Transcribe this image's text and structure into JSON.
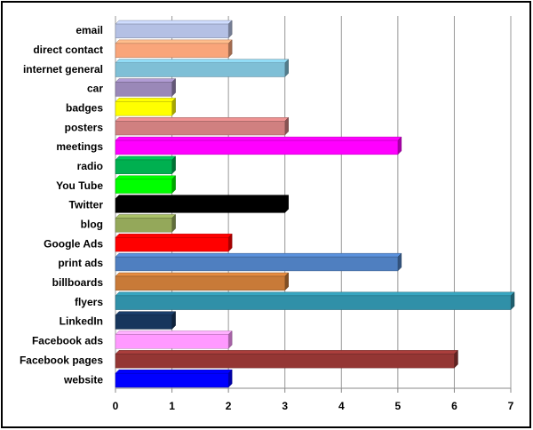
{
  "chart_data": {
    "type": "bar",
    "orientation": "horizontal",
    "categories": [
      "email",
      "direct contact",
      "internet general",
      "car",
      "badges",
      "posters",
      "meetings",
      "radio",
      "You Tube",
      "Twitter",
      "blog",
      "Google Ads",
      "print ads",
      "billboards",
      "flyers",
      "LinkedIn",
      "Facebook ads",
      "Facebook pages",
      "website"
    ],
    "values": [
      2,
      2,
      3,
      1,
      1,
      3,
      5,
      1,
      1,
      3,
      1,
      2,
      5,
      3,
      7,
      1,
      2,
      6,
      2
    ],
    "colors": [
      "#b4c0e4",
      "#f9a57a",
      "#7fbfd6",
      "#9a88b8",
      "#ffff00",
      "#d08080",
      "#ff00ff",
      "#00b050",
      "#00ff00",
      "#000000",
      "#94a85a",
      "#ff0000",
      "#4f7fc0",
      "#c87a38",
      "#3090a8",
      "#17365d",
      "#ff99ff",
      "#943634",
      "#0000ff"
    ],
    "xlim": [
      0,
      7
    ],
    "xticks": [
      0,
      1,
      2,
      3,
      4,
      5,
      6,
      7
    ],
    "grid": true
  }
}
